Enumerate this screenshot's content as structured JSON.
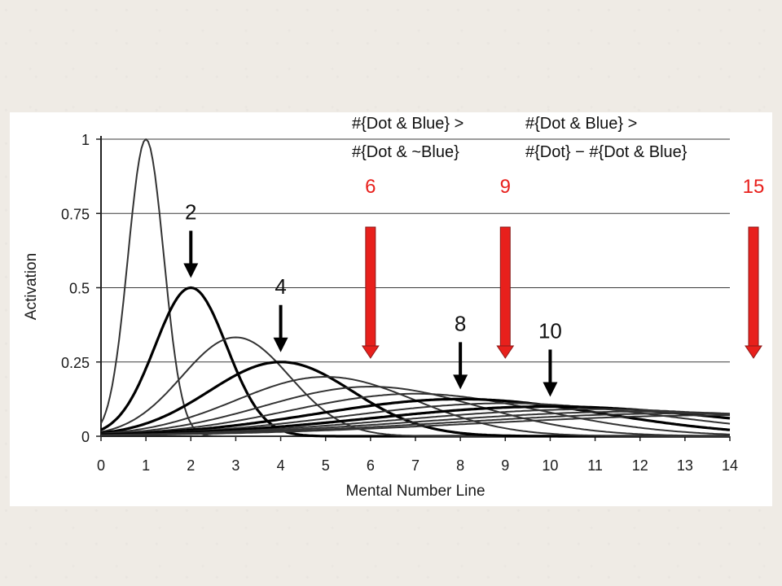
{
  "chart_data": {
    "type": "line",
    "xlabel": "Mental Number Line",
    "ylabel": "Activation",
    "xlim": [
      0,
      14
    ],
    "ylim": [
      0,
      1
    ],
    "x_ticks": [
      0,
      1,
      2,
      3,
      4,
      5,
      6,
      7,
      8,
      9,
      10,
      11,
      12,
      13,
      14
    ],
    "y_ticks": [
      {
        "value": 0,
        "label": "0"
      },
      {
        "value": 0.25,
        "label": "0.25"
      },
      {
        "value": 0.5,
        "label": "0.5"
      },
      {
        "value": 0.75,
        "label": "0.75"
      },
      {
        "value": 1,
        "label": "1"
      }
    ],
    "grid": "horizontal",
    "series": [
      {
        "mean": 1,
        "peak": 1.0,
        "bold": false
      },
      {
        "mean": 2,
        "peak": 0.5,
        "bold": true
      },
      {
        "mean": 3,
        "peak": 0.333,
        "bold": false
      },
      {
        "mean": 4,
        "peak": 0.25,
        "bold": true
      },
      {
        "mean": 5,
        "peak": 0.2,
        "bold": false
      },
      {
        "mean": 6,
        "peak": 0.167,
        "bold": false
      },
      {
        "mean": 7,
        "peak": 0.143,
        "bold": false
      },
      {
        "mean": 8,
        "peak": 0.125,
        "bold": true
      },
      {
        "mean": 9,
        "peak": 0.111,
        "bold": false
      },
      {
        "mean": 10,
        "peak": 0.1,
        "bold": true
      },
      {
        "mean": 11,
        "peak": 0.091,
        "bold": false
      },
      {
        "mean": 12,
        "peak": 0.083,
        "bold": false
      },
      {
        "mean": 13,
        "peak": 0.077,
        "bold": false
      },
      {
        "mean": 14,
        "peak": 0.071,
        "bold": false
      }
    ],
    "black_arrows": [
      {
        "x": 2,
        "label": "2"
      },
      {
        "x": 4,
        "label": "4"
      },
      {
        "x": 8,
        "label": "8"
      },
      {
        "x": 10,
        "label": "10"
      }
    ],
    "red_arrows": [
      {
        "x": 6,
        "label": "6"
      },
      {
        "x": 9,
        "label": "9"
      },
      {
        "x": 15,
        "label": "15"
      }
    ],
    "annotations": [
      {
        "line1": "#{Dot & Blue} >",
        "line2": "#{Dot & ~Blue}"
      },
      {
        "line1": "#{Dot & Blue} >",
        "line2": "#{Dot} − #{Dot & Blue}"
      }
    ]
  },
  "colors": {
    "curve": "#2b2b2b",
    "grid": "#3a3a3a",
    "red_arrow": "#e8201c",
    "red_arrow_outline": "#8a1a1a",
    "red_text": "#e8201c"
  }
}
